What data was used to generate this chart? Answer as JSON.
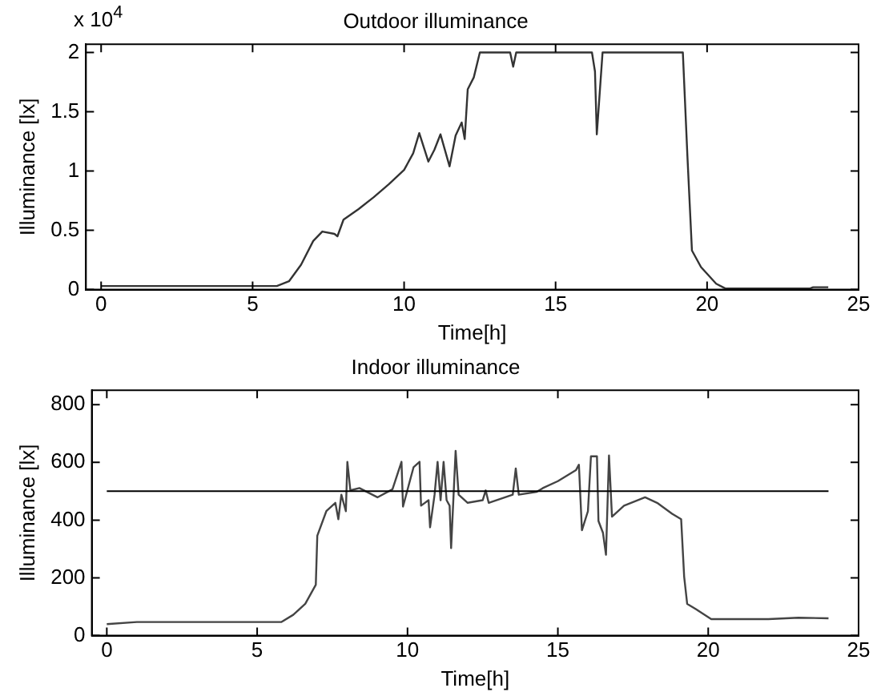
{
  "chart_data": [
    {
      "type": "line",
      "title": "Outdoor illuminance",
      "xlabel": "Time[h]",
      "ylabel": "Illuminance [lx]",
      "annotations": [
        "x 10$^{4}$"
      ],
      "grid": false,
      "legend": false,
      "marker": "none",
      "line_style": "solid",
      "xlim": [
        -0.5,
        25
      ],
      "xticks": [
        0,
        5,
        10,
        15,
        20,
        25
      ],
      "ylim": [
        0,
        2.07
      ],
      "yticks": [
        0,
        0.5,
        1,
        1.5,
        2
      ],
      "series": [
        {
          "color": "#333333",
          "x": [
            0,
            5.8,
            6.2,
            6.6,
            7.0,
            7.3,
            7.7,
            7.8,
            8.0,
            8.5,
            9.0,
            9.5,
            10.0,
            10.3,
            10.5,
            10.8,
            11.0,
            11.2,
            11.5,
            11.7,
            11.9,
            12.0,
            12.1,
            12.3,
            12.5,
            13.5,
            13.6,
            13.7,
            15.7,
            16.2,
            16.3,
            16.36,
            16.55,
            19.2,
            19.35,
            19.5,
            19.8,
            20.3,
            20.6,
            23.4,
            23.5,
            24
          ],
          "values": [
            0.03,
            0.03,
            0.07,
            0.21,
            0.41,
            0.49,
            0.47,
            0.45,
            0.59,
            0.68,
            0.78,
            0.89,
            1.01,
            1.15,
            1.32,
            1.08,
            1.18,
            1.31,
            1.04,
            1.3,
            1.41,
            1.27,
            1.69,
            1.79,
            2,
            2,
            1.88,
            2,
            2,
            2,
            1.84,
            1.31,
            2,
            2,
            1.13,
            0.33,
            0.19,
            0.05,
            0.01,
            0.01,
            0.02,
            0.02
          ]
        }
      ]
    },
    {
      "type": "line",
      "title": "Indoor illuminance",
      "xlabel": "Time[h]",
      "ylabel": "Illuminance [lx]",
      "grid": false,
      "legend": false,
      "marker": "none",
      "line_style": "solid",
      "xlim": [
        -0.5,
        25
      ],
      "xticks": [
        0,
        5,
        10,
        15,
        20,
        25
      ],
      "ylim": [
        0,
        850
      ],
      "yticks": [
        0,
        200,
        400,
        600,
        800
      ],
      "ref_lines": [
        {
          "axis": "y",
          "value": 500,
          "color": "#000000"
        }
      ],
      "series": [
        {
          "color": "#444444",
          "x": [
            0,
            1,
            5.8,
            6.2,
            6.6,
            6.95,
            7.0,
            7.3,
            7.6,
            7.7,
            7.8,
            7.95,
            8.0,
            8.1,
            8.4,
            9.0,
            9.5,
            9.8,
            9.85,
            10.2,
            10.4,
            10.45,
            10.7,
            10.75,
            10.9,
            11.0,
            11.1,
            11.2,
            11.3,
            11.4,
            11.45,
            11.6,
            11.7,
            12.0,
            12.5,
            12.6,
            12.7,
            13.5,
            13.6,
            13.7,
            14.3,
            14.5,
            15.0,
            15.6,
            15.7,
            15.8,
            16.0,
            16.1,
            16.3,
            16.35,
            16.5,
            16.6,
            16.7,
            16.8,
            17.2,
            17.9,
            18.3,
            18.8,
            19.1,
            19.2,
            19.3,
            19.6,
            20.1,
            22.0,
            23.0,
            24.0
          ],
          "values": [
            40,
            47,
            47,
            72,
            110,
            176,
            346,
            431,
            460,
            403,
            488,
            431,
            602,
            503,
            511,
            479,
            507,
            602,
            447,
            583,
            602,
            450,
            469,
            375,
            488,
            602,
            469,
            602,
            469,
            450,
            303,
            640,
            488,
            460,
            469,
            503,
            460,
            488,
            579,
            488,
            498,
            511,
            535,
            573,
            592,
            365,
            431,
            621,
            621,
            397,
            356,
            280,
            624,
            412,
            450,
            479,
            460,
            422,
            403,
            204,
            110,
            91,
            57,
            57,
            62,
            60
          ]
        }
      ]
    }
  ]
}
